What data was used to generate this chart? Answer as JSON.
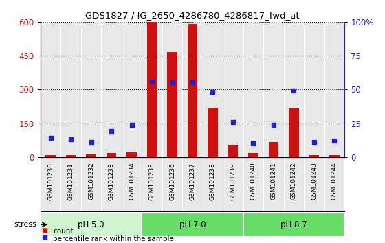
{
  "title": "GDS1827 / IG_2650_4286780_4286817_fwd_at",
  "samples": [
    "GSM101230",
    "GSM101231",
    "GSM101232",
    "GSM101233",
    "GSM101234",
    "GSM101235",
    "GSM101236",
    "GSM101237",
    "GSM101238",
    "GSM101239",
    "GSM101240",
    "GSM101241",
    "GSM101242",
    "GSM101243",
    "GSM101244"
  ],
  "counts": [
    8,
    8,
    12,
    18,
    20,
    600,
    465,
    590,
    220,
    55,
    18,
    65,
    215,
    8,
    8
  ],
  "percentiles": [
    14,
    13,
    11,
    19,
    24,
    56,
    55,
    55,
    48,
    26,
    10,
    24,
    49,
    11,
    12
  ],
  "groups": [
    {
      "label": "pH 5.0",
      "start": 0,
      "end": 5,
      "color": "#d5f5d5"
    },
    {
      "label": "pH 7.0",
      "start": 5,
      "end": 10,
      "color": "#7ae87a"
    },
    {
      "label": "pH 8.7",
      "start": 10,
      "end": 15,
      "color": "#7ae87a"
    }
  ],
  "stress_label": "stress",
  "bar_color": "#cc1111",
  "dot_color": "#2222cc",
  "ylim_left": [
    0,
    600
  ],
  "ylim_right": [
    0,
    100
  ],
  "yticks_left": [
    0,
    150,
    300,
    450,
    600
  ],
  "yticks_right": [
    0,
    25,
    50,
    75,
    100
  ],
  "ytick_labels_right": [
    "0",
    "25",
    "50",
    "75",
    "100%"
  ],
  "bg_color": "#e8e8e8",
  "bar_width": 0.5,
  "plot_bg": "white"
}
